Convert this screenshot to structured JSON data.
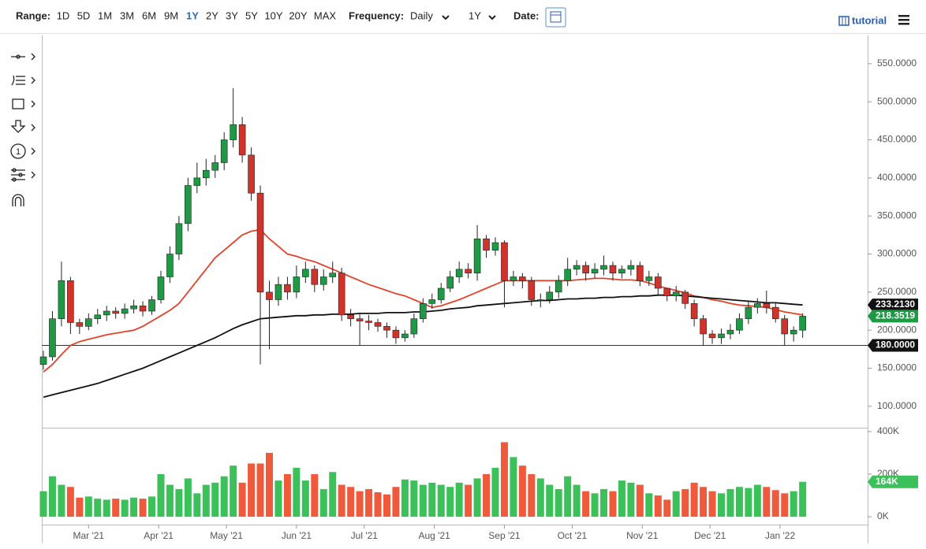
{
  "toolbar": {
    "range_label": "Range:",
    "ranges": [
      "1D",
      "5D",
      "1M",
      "3M",
      "6M",
      "9M",
      "1Y",
      "2Y",
      "3Y",
      "5Y",
      "10Y",
      "20Y",
      "MAX"
    ],
    "active_range_index": 6,
    "frequency_label": "Frequency:",
    "frequency": "Daily",
    "period": "1Y",
    "date_label": "Date:",
    "tutorial": "tutorial",
    "tool_number": "1"
  },
  "chart_data": {
    "type": "candlestick",
    "up_color": "#1e9a45",
    "down_color": "#d1332a",
    "open": [
      155,
      165,
      215,
      265,
      210,
      205,
      215,
      220,
      225,
      222,
      228,
      232,
      225,
      240,
      270,
      300,
      340,
      390,
      400,
      410,
      420,
      450,
      470,
      430,
      380,
      250,
      240,
      260,
      250,
      270,
      280,
      260,
      270,
      275,
      220,
      215,
      212,
      210,
      205,
      200,
      190,
      195,
      215,
      235,
      240,
      255,
      270,
      280,
      275,
      320,
      305,
      315,
      265,
      270,
      265,
      240,
      240,
      250,
      265,
      280,
      285,
      275,
      280,
      285,
      275,
      280,
      285,
      265,
      270,
      255,
      245,
      250,
      235,
      215,
      195,
      190,
      195,
      200,
      215,
      230,
      235,
      230,
      215,
      195,
      200
    ],
    "high": [
      173,
      225,
      290,
      270,
      215,
      222,
      228,
      232,
      230,
      235,
      240,
      238,
      245,
      278,
      310,
      350,
      400,
      420,
      425,
      430,
      460,
      518,
      480,
      440,
      390,
      265,
      270,
      270,
      285,
      290,
      285,
      280,
      290,
      282,
      228,
      222,
      220,
      215,
      210,
      205,
      200,
      222,
      242,
      248,
      262,
      278,
      290,
      288,
      338,
      325,
      322,
      318,
      278,
      275,
      270,
      248,
      258,
      272,
      295,
      292,
      290,
      288,
      298,
      290,
      285,
      292,
      290,
      278,
      275,
      255,
      258,
      253,
      240,
      220,
      200,
      202,
      208,
      222,
      238,
      242,
      252,
      235,
      220,
      205,
      222
    ],
    "low": [
      148,
      160,
      205,
      195,
      195,
      200,
      208,
      212,
      215,
      215,
      222,
      218,
      220,
      235,
      262,
      292,
      330,
      380,
      390,
      400,
      410,
      440,
      420,
      370,
      155,
      175,
      232,
      240,
      242,
      262,
      250,
      252,
      262,
      212,
      205,
      180,
      200,
      198,
      190,
      182,
      185,
      190,
      210,
      228,
      235,
      250,
      262,
      268,
      265,
      295,
      298,
      230,
      258,
      255,
      232,
      230,
      235,
      242,
      258,
      272,
      265,
      268,
      272,
      265,
      268,
      272,
      258,
      258,
      245,
      238,
      238,
      228,
      205,
      180,
      182,
      182,
      188,
      195,
      208,
      222,
      222,
      210,
      180,
      185,
      190
    ],
    "close": [
      165,
      215,
      265,
      210,
      205,
      215,
      220,
      225,
      222,
      228,
      232,
      225,
      240,
      270,
      300,
      340,
      390,
      400,
      410,
      420,
      450,
      470,
      430,
      380,
      250,
      240,
      260,
      250,
      270,
      280,
      260,
      270,
      275,
      220,
      215,
      212,
      210,
      205,
      200,
      190,
      195,
      215,
      235,
      240,
      255,
      270,
      280,
      275,
      320,
      305,
      315,
      265,
      270,
      265,
      240,
      240,
      250,
      265,
      280,
      285,
      275,
      280,
      285,
      275,
      280,
      285,
      265,
      270,
      255,
      245,
      250,
      235,
      215,
      195,
      190,
      195,
      200,
      215,
      230,
      235,
      230,
      215,
      195,
      200,
      218.3519
    ],
    "close_last_label": "218.3519",
    "overlays": [
      {
        "color": "#e2432b",
        "values": [
          145,
          155,
          168,
          180,
          185,
          188,
          191,
          194,
          196,
          198,
          200,
          205,
          212,
          219,
          226,
          235,
          250,
          265,
          280,
          295,
          305,
          315,
          325,
          330,
          332,
          320,
          310,
          300,
          297,
          293,
          290,
          285,
          280,
          275,
          270,
          265,
          260,
          256,
          252,
          248,
          245,
          240,
          235,
          230,
          232,
          236,
          240,
          245,
          250,
          255,
          260,
          265,
          265,
          265,
          265,
          265,
          265,
          265,
          265,
          266,
          267,
          268,
          268,
          267,
          266,
          266,
          265,
          262,
          258,
          255,
          252,
          249,
          245,
          243,
          240,
          238,
          235,
          233,
          232,
          231,
          230,
          227,
          224,
          222,
          220
        ]
      },
      {
        "color": "#111111",
        "values": [
          112,
          115,
          118,
          121,
          124,
          127,
          130,
          134,
          138,
          142,
          146,
          150,
          155,
          160,
          165,
          170,
          175,
          180,
          185,
          190,
          196,
          202,
          207,
          211,
          215,
          216,
          217,
          218,
          219,
          219,
          220,
          220,
          221,
          221,
          221,
          222,
          222,
          222,
          223,
          223,
          223,
          224,
          224,
          225,
          226,
          228,
          229,
          230,
          232,
          233,
          234,
          235,
          236,
          237,
          238,
          239,
          239,
          240,
          241,
          241,
          242,
          242,
          243,
          243,
          244,
          244,
          245,
          245,
          246,
          246,
          246,
          245,
          244,
          243,
          242,
          241,
          240,
          239,
          238,
          237,
          236,
          236,
          235,
          234,
          233.213
        ],
        "last_label": "233.2130"
      }
    ],
    "hline": {
      "value": 180,
      "label": "180.0000"
    },
    "ylim": [
      75,
      584
    ],
    "yticks": [
      {
        "value": 100,
        "label": "100.0000"
      },
      {
        "value": 150,
        "label": "150.0000"
      },
      {
        "value": 200,
        "label": "200.0000"
      },
      {
        "value": 250,
        "label": "250.0000"
      },
      {
        "value": 300,
        "label": "300.0000"
      },
      {
        "value": 350,
        "label": "350.0000"
      },
      {
        "value": 400,
        "label": "400.0000"
      },
      {
        "value": 450,
        "label": "450.0000"
      },
      {
        "value": 500,
        "label": "500.0000"
      },
      {
        "value": 550,
        "label": "550.0000"
      }
    ],
    "xticks": [
      {
        "value": 5,
        "label": "Mar '21"
      },
      {
        "value": 12.75,
        "label": "Apr '21"
      },
      {
        "value": 20.25,
        "label": "May '21"
      },
      {
        "value": 28,
        "label": "Jun '21"
      },
      {
        "value": 35.5,
        "label": "Jul '21"
      },
      {
        "value": 43.25,
        "label": "Aug '21"
      },
      {
        "value": 51,
        "label": "Sep '21"
      },
      {
        "value": 58.5,
        "label": "Oct '21"
      },
      {
        "value": 66.25,
        "label": "Nov '21"
      },
      {
        "value": 73.75,
        "label": "Dec '21"
      },
      {
        "value": 81.5,
        "label": "Jan '22"
      }
    ],
    "volume": {
      "up_color": "#3cc05a",
      "down_color": "#f05a3c",
      "values": [
        120,
        190,
        150,
        140,
        90,
        95,
        85,
        80,
        85,
        80,
        90,
        85,
        95,
        200,
        150,
        130,
        180,
        110,
        150,
        160,
        190,
        240,
        160,
        250,
        250,
        300,
        170,
        200,
        230,
        170,
        200,
        130,
        210,
        150,
        140,
        120,
        130,
        115,
        105,
        140,
        175,
        170,
        150,
        160,
        150,
        140,
        160,
        150,
        180,
        200,
        230,
        350,
        280,
        240,
        200,
        180,
        150,
        130,
        190,
        150,
        120,
        110,
        130,
        120,
        170,
        160,
        150,
        110,
        100,
        80,
        120,
        130,
        160,
        140,
        120,
        110,
        130,
        140,
        135,
        150,
        140,
        125,
        110,
        120,
        164
      ],
      "last_label": "164K",
      "ylim": [
        -33,
        418
      ],
      "yticks": [
        {
          "value": 0,
          "label": "0K"
        },
        {
          "value": 200,
          "label": "200K"
        },
        {
          "value": 400,
          "label": "400K"
        }
      ]
    }
  }
}
